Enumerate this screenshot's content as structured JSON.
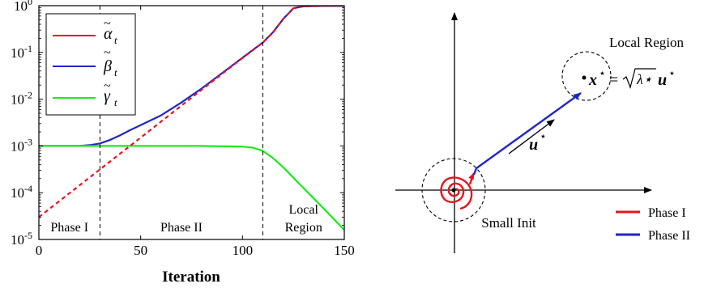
{
  "chart_data": [
    {
      "type": "line",
      "xlabel": "Iteration",
      "ylabel": "",
      "xlim": [
        0,
        150
      ],
      "ylim": [
        1e-05,
        1
      ],
      "yscale": "log",
      "xticks": [
        "0",
        "50",
        "100",
        "150"
      ],
      "yticks": [
        {
          "base": "10",
          "exp": "0",
          "value": 1
        },
        {
          "base": "10",
          "exp": "-1",
          "value": 0.1
        },
        {
          "base": "10",
          "exp": "-2",
          "value": 0.01
        },
        {
          "base": "10",
          "exp": "-3",
          "value": 0.001
        },
        {
          "base": "10",
          "exp": "-4",
          "value": 0.0001
        },
        {
          "base": "10",
          "exp": "-5",
          "value": 1e-05
        }
      ],
      "grid": false,
      "legend_position": "top-left",
      "vlines": [
        30,
        110
      ],
      "region_labels": [
        {
          "lines": [
            "Phase I"
          ],
          "x": 15
        },
        {
          "lines": [
            "Phase II"
          ],
          "x": 70
        },
        {
          "lines": [
            "Local",
            "Region"
          ],
          "x": 130
        }
      ],
      "series": [
        {
          "name": "α̃ₜ",
          "symbol": "alpha",
          "color": "#e8141c",
          "style": "dashed",
          "x": [
            0,
            10,
            20,
            30,
            40,
            50,
            60,
            70,
            80,
            90,
            100,
            110,
            115,
            120,
            125,
            130,
            140,
            150
          ],
          "y": [
            3e-05,
            6.57e-05,
            0.000144,
            0.000315,
            0.000691,
            0.00151,
            0.00332,
            0.00728,
            0.016,
            0.035,
            0.0759,
            0.162,
            0.27,
            0.52,
            0.88,
            0.97,
            0.99,
            0.99
          ]
        },
        {
          "name": "β̃ₜ",
          "symbol": "beta",
          "color": "#1f26c8",
          "style": "solid",
          "x": [
            0,
            10,
            20,
            25,
            30,
            35,
            40,
            45,
            50,
            60,
            70,
            80,
            90,
            100,
            110,
            115,
            120,
            125,
            130,
            140,
            150
          ],
          "y": [
            0.001,
            0.001,
            0.001,
            0.00104,
            0.00113,
            0.00135,
            0.0017,
            0.0022,
            0.0028,
            0.0045,
            0.0085,
            0.017,
            0.036,
            0.077,
            0.163,
            0.27,
            0.52,
            0.88,
            0.97,
            0.99,
            0.99
          ]
        },
        {
          "name": "γ̃ₜ",
          "symbol": "gamma",
          "color": "#1ee81e",
          "style": "solid",
          "x": [
            0,
            20,
            40,
            60,
            80,
            100,
            105,
            110,
            115,
            120,
            130,
            140,
            150
          ],
          "y": [
            0.001,
            0.001,
            0.001,
            0.001,
            0.001,
            0.00097,
            0.00092,
            0.00078,
            0.00055,
            0.00035,
            0.000125,
            4.5e-05,
            1.6e-05
          ]
        }
      ]
    },
    {
      "type": "diagram",
      "labels": {
        "local_region": "Local Region",
        "small_init": "Small Init"
      },
      "equation": {
        "lhs": "x",
        "lhs_sup": "⋆",
        "eq": "=",
        "sqrt_of": "λ⋆",
        "rhs": "u",
        "rhs_sup": "⋆"
      },
      "direction_label": {
        "main": "u",
        "sup": "⋆"
      },
      "legend": [
        {
          "label": "Phase I",
          "color": "#e8141c"
        },
        {
          "label": "Phase II",
          "color": "#1f26c8"
        }
      ]
    }
  ]
}
